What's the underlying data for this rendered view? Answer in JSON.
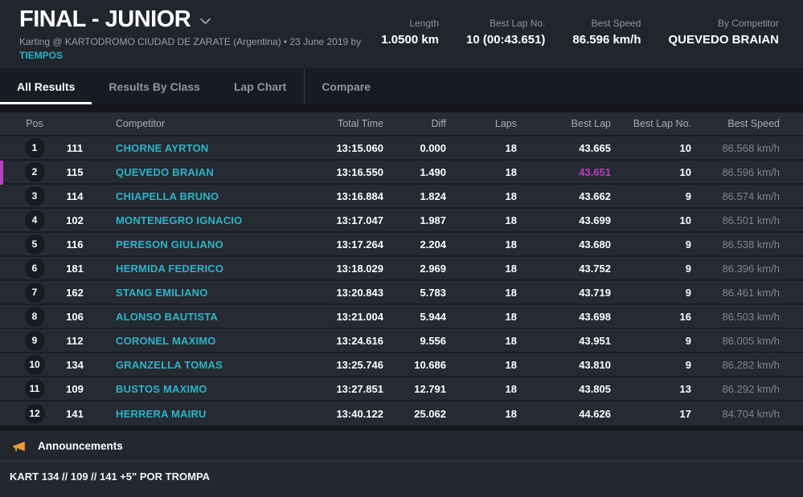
{
  "colors": {
    "accent_cyan": "#2cb5c8",
    "highlight_magenta": "#bb3dc0",
    "announcement_orange": "#f09b2e"
  },
  "header": {
    "title": "FINAL - JUNIOR",
    "subtitle": "Karting @ KARTODROMO CIUDAD DE ZARATE (Argentina) • 23 June 2019 by",
    "subtitle_link": "TIEMPOS",
    "stats": [
      {
        "label": "Length",
        "value": "1.0500 km"
      },
      {
        "label": "Best Lap No.",
        "value": "10 (00:43.651)"
      },
      {
        "label": "Best Speed",
        "value": "86.596 km/h"
      },
      {
        "label": "By Competitor",
        "value": "QUEVEDO BRAIAN"
      }
    ]
  },
  "tabs": [
    {
      "label": "All Results",
      "active": true
    },
    {
      "label": "Results By Class",
      "active": false
    },
    {
      "label": "Lap Chart",
      "active": false
    },
    {
      "label": "Compare",
      "active": false,
      "divider_before": true
    }
  ],
  "table": {
    "columns": [
      "Pos",
      "Competitor",
      "Total Time",
      "Diff",
      "Laps",
      "Best Lap",
      "Best Lap No.",
      "Best Speed"
    ],
    "rows": [
      {
        "pos": "1",
        "kart": "111",
        "competitor": "CHORNE AYRTON",
        "total_time": "13:15.060",
        "diff": "0.000",
        "laps": "18",
        "best_lap": "43.665",
        "best_lap_no": "10",
        "best_speed": "86.568 km/h",
        "highlight": false
      },
      {
        "pos": "2",
        "kart": "115",
        "competitor": "QUEVEDO BRAIAN",
        "total_time": "13:16.550",
        "diff": "1.490",
        "laps": "18",
        "best_lap": "43.651",
        "best_lap_no": "10",
        "best_speed": "86.596 km/h",
        "highlight": true
      },
      {
        "pos": "3",
        "kart": "114",
        "competitor": "CHIAPELLA BRUNO",
        "total_time": "13:16.884",
        "diff": "1.824",
        "laps": "18",
        "best_lap": "43.662",
        "best_lap_no": "9",
        "best_speed": "86.574 km/h",
        "highlight": false
      },
      {
        "pos": "4",
        "kart": "102",
        "competitor": "MONTENEGRO IGNACIO",
        "total_time": "13:17.047",
        "diff": "1.987",
        "laps": "18",
        "best_lap": "43.699",
        "best_lap_no": "10",
        "best_speed": "86.501 km/h",
        "highlight": false
      },
      {
        "pos": "5",
        "kart": "116",
        "competitor": "PERESON GIULIANO",
        "total_time": "13:17.264",
        "diff": "2.204",
        "laps": "18",
        "best_lap": "43.680",
        "best_lap_no": "9",
        "best_speed": "86.538 km/h",
        "highlight": false
      },
      {
        "pos": "6",
        "kart": "181",
        "competitor": "HERMIDA FEDERICO",
        "total_time": "13:18.029",
        "diff": "2.969",
        "laps": "18",
        "best_lap": "43.752",
        "best_lap_no": "9",
        "best_speed": "86.396 km/h",
        "highlight": false
      },
      {
        "pos": "7",
        "kart": "162",
        "competitor": "STANG EMILIANO",
        "total_time": "13:20.843",
        "diff": "5.783",
        "laps": "18",
        "best_lap": "43.719",
        "best_lap_no": "9",
        "best_speed": "86.461 km/h",
        "highlight": false
      },
      {
        "pos": "8",
        "kart": "106",
        "competitor": "ALONSO BAUTISTA",
        "total_time": "13:21.004",
        "diff": "5.944",
        "laps": "18",
        "best_lap": "43.698",
        "best_lap_no": "16",
        "best_speed": "86.503 km/h",
        "highlight": false
      },
      {
        "pos": "9",
        "kart": "112",
        "competitor": "CORONEL MAXIMO",
        "total_time": "13:24.616",
        "diff": "9.556",
        "laps": "18",
        "best_lap": "43.951",
        "best_lap_no": "9",
        "best_speed": "86.005 km/h",
        "highlight": false
      },
      {
        "pos": "10",
        "kart": "134",
        "competitor": "GRANZELLA TOMAS",
        "total_time": "13:25.746",
        "diff": "10.686",
        "laps": "18",
        "best_lap": "43.810",
        "best_lap_no": "9",
        "best_speed": "86.282 km/h",
        "highlight": false
      },
      {
        "pos": "11",
        "kart": "109",
        "competitor": "BUSTOS MAXIMO",
        "total_time": "13:27.851",
        "diff": "12.791",
        "laps": "18",
        "best_lap": "43.805",
        "best_lap_no": "13",
        "best_speed": "86.292 km/h",
        "highlight": false
      },
      {
        "pos": "12",
        "kart": "141",
        "competitor": "HERRERA MAIRU",
        "total_time": "13:40.122",
        "diff": "25.062",
        "laps": "18",
        "best_lap": "44.626",
        "best_lap_no": "17",
        "best_speed": "84.704 km/h",
        "highlight": false
      }
    ]
  },
  "announcements": {
    "title": "Announcements",
    "content": "KART 134 // 109 // 141 +5\" POR TROMPA"
  }
}
